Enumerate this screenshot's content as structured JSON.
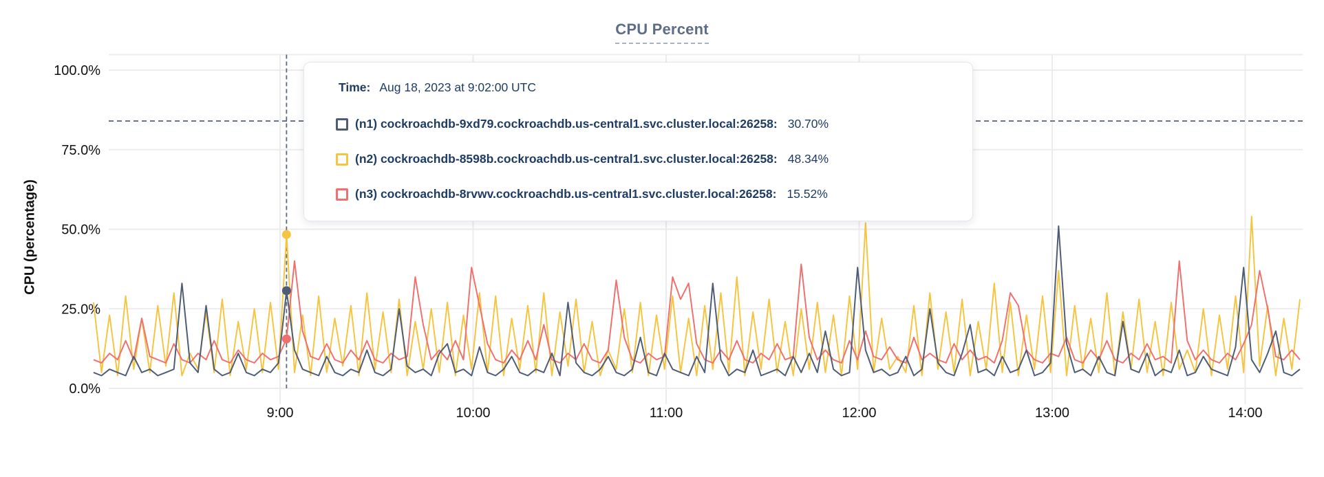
{
  "title": "CPU Percent",
  "y_axis": {
    "label": "CPU (percentage)"
  },
  "tooltip": {
    "time_label": "Time:",
    "time_value": "Aug 18, 2023 at 9:02:00 UTC",
    "rows": [
      {
        "name": "(n1) cockroachdb-9xd79.cockroachdb.us-central1.svc.cluster.local:26258:",
        "value": "30.70%"
      },
      {
        "name": "(n2) cockroachdb-8598b.cockroachdb.us-central1.svc.cluster.local:26258:",
        "value": "48.34%"
      },
      {
        "name": "(n3) cockroachdb-8rvwv.cockroachdb.us-central1.svc.cluster.local:26258:",
        "value": "15.52%"
      }
    ]
  },
  "colors": {
    "grid": "#ececec",
    "guide": "#5a6b80",
    "tick_text": "#111111",
    "title_text": "#5d6d85",
    "tooltip_text": "#1e3c64"
  },
  "chart_data": {
    "type": "line",
    "title": "CPU Percent",
    "xlabel": "",
    "ylabel": "CPU (percentage)",
    "ylim": [
      0,
      100
    ],
    "grid": true,
    "y_ticks": [
      {
        "value": 100,
        "label": "100.0%"
      },
      {
        "value": 75,
        "label": "75.0%"
      },
      {
        "value": 50,
        "label": "50.0%"
      },
      {
        "value": 25,
        "label": "25.0%"
      },
      {
        "value": 0,
        "label": "0.0%"
      }
    ],
    "x_ticks": [
      {
        "minute": 540,
        "label": "9:00"
      },
      {
        "minute": 600,
        "label": "10:00"
      },
      {
        "minute": 660,
        "label": "11:00"
      },
      {
        "minute": 720,
        "label": "12:00"
      },
      {
        "minute": 780,
        "label": "13:00"
      },
      {
        "minute": 840,
        "label": "14:00"
      }
    ],
    "x_unit": "minutes of day (UTC), Aug 18 2023",
    "t_start_min": 482,
    "t_step_min": 2.5,
    "hover": {
      "time_min": 542,
      "time_text": "Aug 18, 2023 at 9:02:00 UTC",
      "hline_pct": 84,
      "values": {
        "n1": 30.7,
        "n2": 48.34,
        "n3": 15.52
      }
    },
    "series": [
      {
        "id": "n1",
        "name": "(n1) cockroachdb-9xd79.cockroachdb.us-central1.svc.cluster.local:26258",
        "color": "#4e5c75",
        "values": [
          5,
          4,
          6,
          5,
          4,
          10,
          5,
          6,
          4,
          5,
          6,
          33,
          8,
          5,
          26,
          6,
          4,
          5,
          11,
          5,
          4,
          6,
          5,
          8,
          30.7,
          12,
          6,
          5,
          4,
          10,
          5,
          4,
          6,
          5,
          12,
          5,
          4,
          6,
          25,
          7,
          5,
          6,
          4,
          11,
          14,
          5,
          6,
          4,
          13,
          5,
          4,
          6,
          10,
          5,
          4,
          6,
          5,
          11,
          4,
          27,
          8,
          5,
          4,
          6,
          10,
          5,
          4,
          6,
          16,
          5,
          4,
          11,
          6,
          5,
          4,
          10,
          5,
          33,
          9,
          4,
          6,
          5,
          12,
          4,
          5,
          6,
          4,
          10,
          5,
          11,
          5,
          18,
          6,
          4,
          5,
          38,
          12,
          5,
          6,
          4,
          5,
          10,
          4,
          6,
          25,
          8,
          5,
          4,
          11,
          20,
          5,
          6,
          4,
          10,
          5,
          6,
          12,
          4,
          5,
          8,
          51,
          14,
          5,
          6,
          4,
          10,
          5,
          4,
          21,
          6,
          5,
          11,
          4,
          6,
          5,
          12,
          4,
          5,
          10,
          6,
          5,
          4,
          13,
          38,
          9,
          5,
          11,
          18,
          5,
          4,
          6
        ]
      },
      {
        "id": "n2",
        "name": "(n2) cockroachdb-8598b.cockroachdb.us-central1.svc.cluster.local:26258",
        "color": "#f5c542",
        "values": [
          27,
          5,
          23,
          4,
          29,
          6,
          22,
          5,
          26,
          7,
          30,
          4,
          11,
          6,
          24,
          5,
          28,
          4,
          21,
          6,
          25,
          5,
          27,
          6,
          48.34,
          5,
          23,
          4,
          29,
          5,
          22,
          7,
          26,
          4,
          30,
          6,
          24,
          5,
          28,
          4,
          21,
          6,
          25,
          5,
          27,
          4,
          23,
          6,
          30,
          5,
          29,
          4,
          22,
          6,
          26,
          5,
          30,
          4,
          24,
          7,
          28,
          5,
          21,
          4,
          12,
          6,
          25,
          5,
          27,
          4,
          23,
          6,
          29,
          5,
          22,
          4,
          26,
          6,
          30,
          5,
          35,
          4,
          24,
          6,
          28,
          5,
          21,
          4,
          25,
          6,
          27,
          5,
          23,
          4,
          29,
          6,
          52,
          5,
          22,
          6,
          10,
          5,
          26,
          4,
          30,
          6,
          24,
          5,
          28,
          4,
          21,
          6,
          33,
          5,
          27,
          4,
          23,
          6,
          29,
          5,
          37,
          4,
          26,
          6,
          22,
          5,
          30,
          4,
          24,
          6,
          28,
          5,
          21,
          4,
          27,
          6,
          12,
          5,
          25,
          4,
          23,
          6,
          29,
          5,
          54,
          7,
          26,
          4,
          22,
          6,
          28
        ]
      },
      {
        "id": "n3",
        "name": "(n3) cockroachdb-8rvwv.cockroachdb.us-central1.svc.cluster.local:26258",
        "color": "#ee7170",
        "values": [
          9,
          8,
          11,
          9,
          15,
          9,
          22,
          10,
          9,
          8,
          14,
          9,
          8,
          11,
          9,
          15,
          9,
          8,
          12,
          9,
          8,
          11,
          9,
          10,
          15.52,
          40,
          18,
          10,
          9,
          14,
          9,
          8,
          12,
          9,
          15,
          9,
          8,
          11,
          9,
          10,
          35,
          20,
          9,
          12,
          9,
          15,
          9,
          38,
          26,
          14,
          9,
          8,
          12,
          9,
          15,
          9,
          20,
          9,
          8,
          11,
          9,
          14,
          9,
          8,
          12,
          34,
          16,
          9,
          8,
          11,
          9,
          10,
          35,
          28,
          33,
          14,
          9,
          8,
          12,
          9,
          15,
          9,
          8,
          11,
          9,
          14,
          9,
          10,
          39,
          16,
          9,
          12,
          9,
          8,
          15,
          9,
          18,
          10,
          9,
          13,
          9,
          8,
          16,
          9,
          11,
          9,
          8,
          14,
          9,
          12,
          9,
          10,
          8,
          15,
          30,
          26,
          12,
          9,
          8,
          11,
          10,
          16,
          9,
          8,
          12,
          9,
          15,
          9,
          8,
          11,
          9,
          14,
          9,
          10,
          8,
          40,
          15,
          9,
          12,
          9,
          8,
          11,
          9,
          14,
          20,
          37,
          25,
          10,
          9,
          12,
          9
        ]
      }
    ],
    "legend_position": "in-tooltip"
  }
}
